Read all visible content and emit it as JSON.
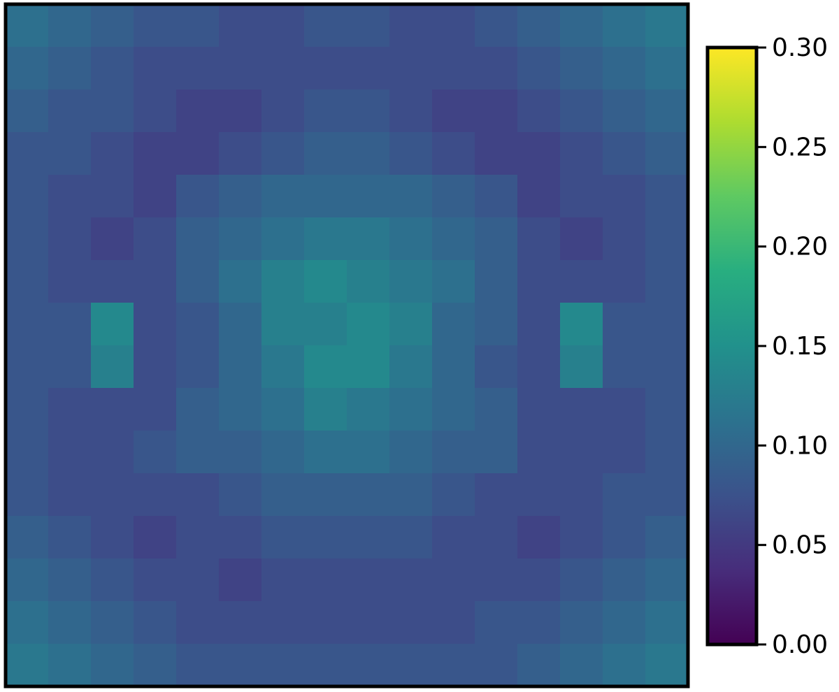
{
  "chart_data": {
    "type": "heatmap",
    "colormap": [
      "#440154",
      "#472d7b",
      "#3b528b",
      "#2c728e",
      "#21918c",
      "#28ae80",
      "#5ec962",
      "#addc30",
      "#fde725"
    ],
    "clim": [
      0,
      0.3
    ],
    "cticks": [
      {
        "value": 0,
        "label": "0.00"
      },
      {
        "value": 0.05,
        "label": "0.05"
      },
      {
        "value": 0.1,
        "label": "0.10"
      },
      {
        "value": 0.15,
        "label": "0.15"
      },
      {
        "value": 0.2,
        "label": "0.20"
      },
      {
        "value": 0.25,
        "label": "0.25"
      },
      {
        "value": 0.3,
        "label": "0.30"
      }
    ],
    "values": [
      [
        0.11,
        0.1,
        0.09,
        0.08,
        0.08,
        0.07,
        0.07,
        0.08,
        0.08,
        0.07,
        0.07,
        0.08,
        0.09,
        0.1,
        0.11,
        0.12
      ],
      [
        0.1,
        0.09,
        0.08,
        0.07,
        0.07,
        0.07,
        0.07,
        0.07,
        0.07,
        0.07,
        0.07,
        0.07,
        0.08,
        0.09,
        0.1,
        0.11
      ],
      [
        0.09,
        0.08,
        0.08,
        0.07,
        0.06,
        0.06,
        0.07,
        0.08,
        0.08,
        0.07,
        0.06,
        0.06,
        0.07,
        0.08,
        0.09,
        0.1
      ],
      [
        0.08,
        0.08,
        0.07,
        0.06,
        0.06,
        0.07,
        0.08,
        0.09,
        0.09,
        0.08,
        0.07,
        0.06,
        0.06,
        0.07,
        0.08,
        0.09
      ],
      [
        0.08,
        0.07,
        0.07,
        0.06,
        0.08,
        0.09,
        0.1,
        0.1,
        0.1,
        0.1,
        0.09,
        0.08,
        0.06,
        0.07,
        0.07,
        0.08
      ],
      [
        0.08,
        0.07,
        0.06,
        0.07,
        0.09,
        0.1,
        0.11,
        0.12,
        0.12,
        0.11,
        0.1,
        0.09,
        0.07,
        0.06,
        0.07,
        0.08
      ],
      [
        0.08,
        0.07,
        0.07,
        0.07,
        0.09,
        0.11,
        0.13,
        0.14,
        0.13,
        0.12,
        0.11,
        0.09,
        0.07,
        0.07,
        0.07,
        0.08
      ],
      [
        0.08,
        0.08,
        0.14,
        0.07,
        0.08,
        0.1,
        0.13,
        0.13,
        0.14,
        0.13,
        0.1,
        0.09,
        0.07,
        0.14,
        0.08,
        0.08
      ],
      [
        0.08,
        0.08,
        0.13,
        0.07,
        0.08,
        0.1,
        0.12,
        0.14,
        0.14,
        0.12,
        0.1,
        0.08,
        0.07,
        0.13,
        0.08,
        0.08
      ],
      [
        0.08,
        0.07,
        0.07,
        0.07,
        0.09,
        0.1,
        0.11,
        0.13,
        0.12,
        0.11,
        0.1,
        0.09,
        0.07,
        0.07,
        0.07,
        0.08
      ],
      [
        0.08,
        0.07,
        0.07,
        0.08,
        0.09,
        0.09,
        0.1,
        0.11,
        0.11,
        0.1,
        0.09,
        0.09,
        0.07,
        0.07,
        0.07,
        0.08
      ],
      [
        0.08,
        0.07,
        0.07,
        0.07,
        0.07,
        0.08,
        0.09,
        0.09,
        0.09,
        0.09,
        0.08,
        0.07,
        0.07,
        0.07,
        0.08,
        0.08
      ],
      [
        0.09,
        0.08,
        0.07,
        0.06,
        0.07,
        0.07,
        0.08,
        0.08,
        0.08,
        0.08,
        0.07,
        0.07,
        0.06,
        0.07,
        0.08,
        0.09
      ],
      [
        0.1,
        0.09,
        0.08,
        0.07,
        0.07,
        0.06,
        0.07,
        0.07,
        0.07,
        0.07,
        0.07,
        0.07,
        0.07,
        0.08,
        0.09,
        0.1
      ],
      [
        0.11,
        0.1,
        0.09,
        0.08,
        0.07,
        0.07,
        0.07,
        0.07,
        0.07,
        0.07,
        0.07,
        0.08,
        0.08,
        0.09,
        0.1,
        0.11
      ],
      [
        0.12,
        0.11,
        0.1,
        0.09,
        0.08,
        0.08,
        0.08,
        0.08,
        0.08,
        0.08,
        0.08,
        0.08,
        0.09,
        0.1,
        0.11,
        0.12
      ]
    ]
  }
}
